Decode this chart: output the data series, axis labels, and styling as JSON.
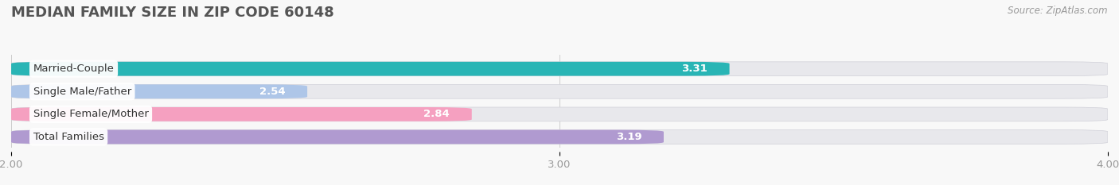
{
  "title": "MEDIAN FAMILY SIZE IN ZIP CODE 60148",
  "source": "Source: ZipAtlas.com",
  "categories": [
    "Married-Couple",
    "Single Male/Father",
    "Single Female/Mother",
    "Total Families"
  ],
  "values": [
    3.31,
    2.54,
    2.84,
    3.19
  ],
  "colors": [
    "#29b5b5",
    "#aec6e8",
    "#f5a0c0",
    "#b09ad0"
  ],
  "bg_bar_color": "#e8e8ec",
  "background_color": "#f8f8f8",
  "xlim": [
    2.0,
    4.0
  ],
  "xticks": [
    2.0,
    3.0,
    4.0
  ],
  "xticklabels": [
    "2.00",
    "3.00",
    "4.00"
  ],
  "label_fontsize": 9.5,
  "value_fontsize": 9.5,
  "title_fontsize": 13,
  "source_fontsize": 8.5,
  "bar_height": 0.62,
  "bar_spacing": 1.0
}
